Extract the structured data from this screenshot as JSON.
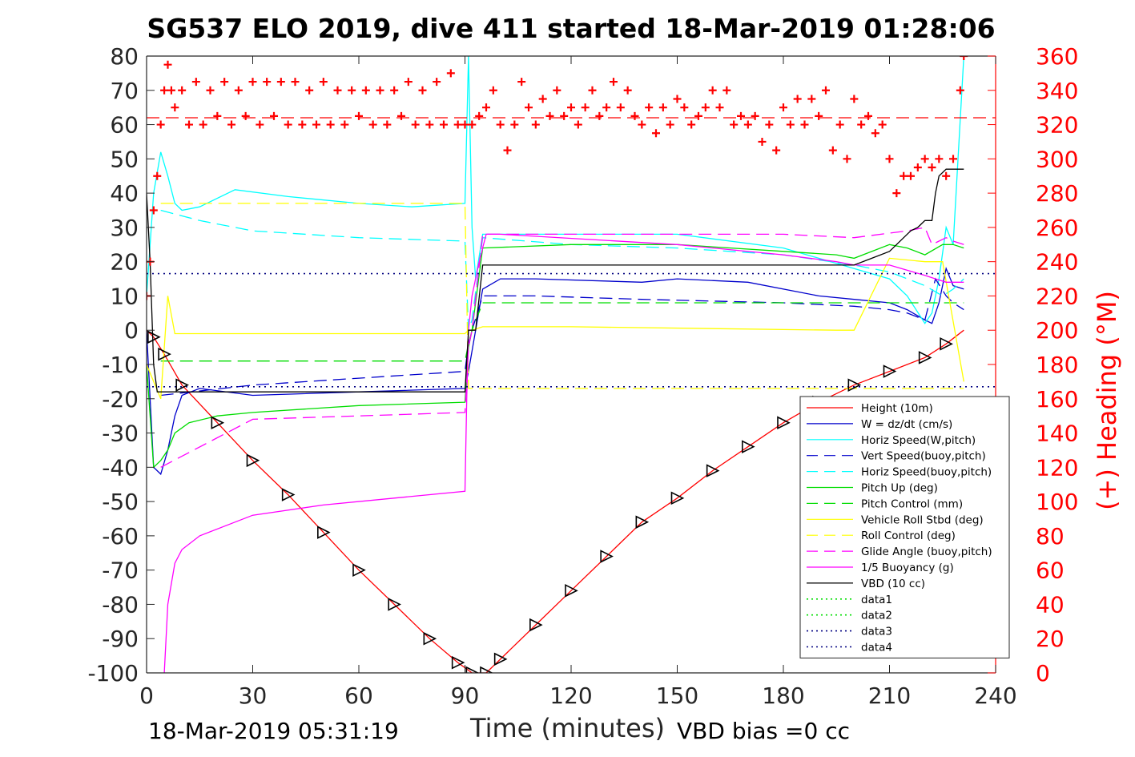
{
  "title": "SG537 ELO 2019, dive 411 started 18-Mar-2019 01:28:06",
  "footer": {
    "timestamp": "18-Mar-2019 05:31:19",
    "vbd_bias": "VBD bias =0 cc"
  },
  "chart_data": {
    "type": "line",
    "xlabel": "Time (minutes)",
    "ylabel": "",
    "y2label": "(+) Heading (°M)",
    "xlim": [
      0,
      240
    ],
    "ylim": [
      -100,
      80
    ],
    "y2lim": [
      0,
      360
    ],
    "xticks": [
      "0",
      "30",
      "60",
      "90",
      "120",
      "150",
      "180",
      "210",
      "240"
    ],
    "yticks": [
      "-100",
      "-90",
      "-80",
      "-70",
      "-60",
      "-50",
      "-40",
      "-30",
      "-20",
      "-10",
      "0",
      "10",
      "20",
      "30",
      "40",
      "50",
      "60",
      "70",
      "80"
    ],
    "y2ticks": [
      "0",
      "20",
      "40",
      "60",
      "80",
      "100",
      "120",
      "140",
      "160",
      "180",
      "200",
      "220",
      "240",
      "260",
      "280",
      "300",
      "320",
      "340",
      "360"
    ],
    "legend_position": "bottom-right",
    "grid": false,
    "series": [
      {
        "name": "Height (10m)",
        "color": "#ff0000",
        "style": "solid",
        "x": [
          0,
          2,
          5,
          10,
          20,
          30,
          40,
          50,
          60,
          70,
          80,
          88,
          92,
          96,
          100,
          110,
          120,
          130,
          140,
          150,
          160,
          170,
          180,
          190,
          200,
          210,
          220,
          226,
          231
        ],
        "y": [
          0,
          -2,
          -7,
          -16,
          -27,
          -38,
          -48,
          -59,
          -70,
          -80,
          -90,
          -97,
          -100,
          -100,
          -96,
          -86,
          -76,
          -66,
          -56,
          -49,
          -41,
          -34,
          -27,
          -21,
          -16,
          -12,
          -8,
          -4,
          0
        ]
      },
      {
        "name": "W = dz/dt (cm/s)",
        "color": "#0000cc",
        "style": "solid",
        "x": [
          0,
          2,
          4,
          6,
          8,
          10,
          15,
          30,
          60,
          90,
          91,
          93,
          95,
          100,
          110,
          140,
          150,
          170,
          190,
          200,
          210,
          215,
          220,
          222,
          224,
          226,
          228,
          231
        ],
        "y": [
          0,
          -40,
          -42,
          -35,
          -25,
          -19,
          -17,
          -19,
          -18,
          -17,
          -12,
          0,
          12,
          15,
          15,
          14,
          15,
          14,
          10,
          9,
          8,
          6,
          3,
          2,
          8,
          18,
          13,
          12
        ]
      },
      {
        "name": "Horiz Speed(W,pitch)",
        "color": "#00ffff",
        "style": "solid",
        "x": [
          0,
          2,
          4,
          6,
          8,
          10,
          15,
          25,
          40,
          60,
          75,
          90,
          91,
          92,
          93,
          95,
          100,
          120,
          150,
          180,
          190,
          200,
          210,
          215,
          220,
          222,
          224,
          226,
          228,
          231
        ],
        "y": [
          10,
          40,
          52,
          45,
          37,
          35,
          36,
          41,
          39,
          37,
          36,
          37,
          80,
          30,
          15,
          28,
          28,
          28,
          28,
          24,
          21,
          18,
          15,
          10,
          2,
          5,
          15,
          30,
          25,
          80
        ]
      },
      {
        "name": "Vert Speed(buoy,pitch)",
        "color": "#0000cc",
        "style": "dashed",
        "x": [
          4,
          30,
          60,
          90,
          91,
          92,
          95,
          110,
          140,
          180,
          200,
          210,
          215,
          220,
          223,
          226,
          228,
          231
        ],
        "y": [
          -19,
          -16,
          -14,
          -12,
          -4,
          0,
          10,
          10,
          9,
          8,
          7,
          6,
          5,
          3,
          15,
          10,
          8,
          6
        ]
      },
      {
        "name": "Horiz Speed(buoy,pitch)",
        "color": "#00ffff",
        "style": "dashed",
        "x": [
          4,
          15,
          30,
          60,
          90,
          91,
          92,
          95,
          120,
          150,
          180,
          200,
          210,
          220,
          225,
          228,
          231
        ],
        "y": [
          35,
          32,
          29,
          27,
          26,
          0,
          3,
          27,
          25,
          24,
          22,
          19,
          17,
          13,
          10,
          12,
          15
        ]
      },
      {
        "name": "Pitch Up (deg)",
        "color": "#00dd00",
        "style": "solid",
        "x": [
          0,
          2,
          4,
          6,
          8,
          12,
          20,
          30,
          60,
          90,
          91,
          92,
          95,
          120,
          150,
          180,
          195,
          200,
          210,
          215,
          220,
          225,
          228,
          231
        ],
        "y": [
          -10,
          -40,
          -38,
          -35,
          -30,
          -27,
          -25,
          -24,
          -22,
          -21,
          -5,
          0,
          24,
          25,
          25,
          23,
          22,
          21,
          25,
          24,
          22,
          25,
          25,
          24
        ]
      },
      {
        "name": "Pitch Control (mm)",
        "color": "#00dd00",
        "style": "dashed",
        "x": [
          4,
          90,
          91,
          92,
          95,
          231
        ],
        "y": [
          -9,
          -9,
          -4,
          0,
          8,
          8
        ]
      },
      {
        "name": "Vehicle Roll Stbd (deg)",
        "color": "#ffff00",
        "style": "solid",
        "x": [
          0,
          4,
          6,
          8,
          90,
          91,
          92,
          95,
          120,
          195,
          200,
          210,
          220,
          225,
          231
        ],
        "y": [
          -10,
          -20,
          10,
          -1,
          -1,
          0,
          0,
          1,
          1,
          0,
          0,
          21,
          20,
          20,
          -15
        ]
      },
      {
        "name": "Roll Control (deg)",
        "color": "#ffff00",
        "style": "dashed",
        "x": [
          4,
          90,
          91,
          231
        ],
        "y": [
          37,
          37,
          -17,
          -17
        ]
      },
      {
        "name": "Glide Angle (buoy,pitch)",
        "color": "#ff00ff",
        "style": "dashed",
        "x": [
          4,
          30,
          60,
          90,
          91,
          92,
          95,
          120,
          150,
          180,
          200,
          215,
          220,
          222,
          224,
          226,
          228,
          231
        ],
        "y": [
          -40,
          -26,
          -25,
          -24,
          -5,
          0,
          28,
          28,
          28,
          28,
          27,
          29,
          30,
          25,
          26,
          27,
          26,
          25
        ]
      },
      {
        "name": "1/5 Buoyancy (g)",
        "color": "#ff00ff",
        "style": "solid",
        "x": [
          5,
          6,
          8,
          10,
          15,
          30,
          50,
          70,
          90,
          90.5,
          91,
          92,
          94,
          96,
          100,
          150,
          180,
          195,
          200,
          210,
          220,
          223,
          226,
          231
        ],
        "y": [
          -100,
          -80,
          -68,
          -64,
          -60,
          -54,
          -51,
          -49,
          -47,
          -20,
          0,
          10,
          20,
          28,
          28,
          25,
          22,
          20,
          19,
          19,
          16,
          15,
          14,
          14
        ]
      },
      {
        "name": "VBD (10 cc)",
        "color": "#000000",
        "style": "solid",
        "x": [
          0,
          1,
          2,
          3,
          90,
          91,
          92,
          93,
          95,
          200,
          205,
          210,
          212,
          214,
          216,
          218,
          220,
          222,
          223,
          224,
          226,
          231
        ],
        "y": [
          40,
          20,
          -10,
          -18,
          -18,
          0,
          0,
          0,
          19,
          19,
          21,
          23,
          25,
          27,
          29,
          30,
          32,
          32,
          40,
          45,
          47,
          47
        ]
      },
      {
        "name": "data1",
        "color": "#00dd00",
        "style": "dotted",
        "x": [],
        "y": []
      },
      {
        "name": "data2",
        "color": "#00dd00",
        "style": "dotted",
        "x": [],
        "y": []
      },
      {
        "name": "data3",
        "color": "#000080",
        "style": "dotted",
        "x": [
          0,
          240
        ],
        "y": [
          16.5,
          16.5
        ]
      },
      {
        "name": "data4",
        "color": "#000080",
        "style": "dotted",
        "x": [
          0,
          240
        ],
        "y": [
          -16.5,
          -16.5
        ]
      }
    ],
    "heading_series": {
      "name": "(+) Heading",
      "color": "#ff0000",
      "marker": "+",
      "axis": "right",
      "mean_heading": 324,
      "x": [
        0,
        1,
        2,
        3,
        4,
        5,
        6,
        7,
        8,
        10,
        12,
        14,
        16,
        18,
        20,
        22,
        24,
        26,
        28,
        30,
        32,
        34,
        36,
        38,
        40,
        42,
        44,
        46,
        48,
        50,
        52,
        54,
        56,
        58,
        60,
        62,
        64,
        66,
        68,
        70,
        72,
        74,
        76,
        78,
        80,
        82,
        84,
        86,
        88,
        90,
        92,
        94,
        96,
        98,
        100,
        102,
        104,
        106,
        108,
        110,
        112,
        114,
        116,
        118,
        120,
        122,
        124,
        126,
        128,
        130,
        132,
        134,
        136,
        138,
        140,
        142,
        144,
        146,
        148,
        150,
        152,
        154,
        156,
        158,
        160,
        162,
        164,
        166,
        168,
        170,
        172,
        174,
        176,
        178,
        180,
        182,
        184,
        186,
        188,
        190,
        192,
        194,
        196,
        198,
        200,
        202,
        204,
        206,
        208,
        210,
        212,
        214,
        216,
        218,
        220,
        222,
        224,
        226,
        228,
        230,
        231
      ],
      "y": [
        220,
        240,
        270,
        290,
        320,
        340,
        355,
        340,
        330,
        340,
        320,
        345,
        320,
        340,
        325,
        345,
        320,
        340,
        325,
        345,
        320,
        345,
        325,
        345,
        320,
        345,
        320,
        340,
        320,
        345,
        320,
        340,
        320,
        340,
        325,
        340,
        320,
        340,
        320,
        340,
        325,
        345,
        320,
        340,
        320,
        345,
        320,
        350,
        320,
        320,
        320,
        325,
        330,
        340,
        320,
        305,
        320,
        345,
        330,
        320,
        335,
        325,
        340,
        325,
        330,
        320,
        330,
        340,
        325,
        330,
        345,
        330,
        340,
        325,
        320,
        330,
        315,
        330,
        320,
        335,
        330,
        320,
        325,
        330,
        340,
        330,
        340,
        320,
        325,
        320,
        325,
        310,
        320,
        305,
        330,
        320,
        335,
        320,
        335,
        325,
        340,
        305,
        320,
        300,
        335,
        320,
        325,
        315,
        320,
        300,
        280,
        290,
        290,
        295,
        300,
        295,
        300,
        290,
        300,
        340,
        360
      ]
    }
  }
}
